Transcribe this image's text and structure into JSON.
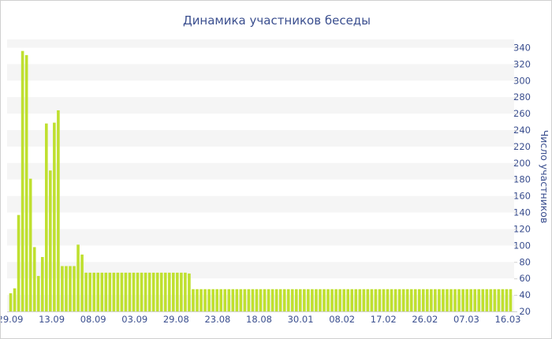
{
  "chart_data": {
    "type": "bar",
    "title": "Динамика участников беседы",
    "xlabel": "",
    "ylabel": "Число участников",
    "ylim": [
      20,
      350
    ],
    "yticks": [
      20,
      40,
      60,
      80,
      100,
      120,
      140,
      160,
      180,
      200,
      220,
      240,
      260,
      280,
      300,
      320,
      340
    ],
    "grid": "horizontal bands",
    "colors": {
      "bar": "#bfe030",
      "band": "#f5f5f5",
      "text": "#3b4f8f"
    },
    "x_tick_labels": [
      "29.09",
      "13.09",
      "08.09",
      "03.09",
      "29.08",
      "23.08",
      "18.08",
      "30.01",
      "08.02",
      "17.02",
      "26.02",
      "07.03",
      "16.03"
    ],
    "values": [
      42,
      48,
      137,
      336,
      331,
      181,
      98,
      63,
      86,
      248,
      191,
      249,
      264,
      75,
      75,
      75,
      75,
      101,
      89,
      67,
      67,
      67,
      67,
      67,
      67,
      67,
      67,
      67,
      67,
      67,
      67,
      67,
      67,
      67,
      67,
      67,
      67,
      67,
      67,
      67,
      67,
      67,
      67,
      67,
      67,
      66,
      47,
      47,
      47,
      47,
      47,
      47,
      47,
      47,
      47,
      47,
      47,
      47,
      47,
      47,
      47,
      47,
      47,
      47,
      47,
      47,
      47,
      47,
      47,
      47,
      47,
      47,
      47,
      47,
      47,
      47,
      47,
      47,
      47,
      47,
      47,
      47,
      47,
      47,
      47,
      47,
      47,
      47,
      47,
      47,
      47,
      47,
      47,
      47,
      47,
      47,
      47,
      47,
      47,
      47,
      47,
      47,
      47,
      47,
      47,
      47,
      47,
      47,
      47,
      47,
      47,
      47,
      47,
      47,
      47,
      47,
      47,
      47,
      47,
      47,
      47,
      47,
      47,
      47,
      47,
      47,
      47
    ]
  }
}
